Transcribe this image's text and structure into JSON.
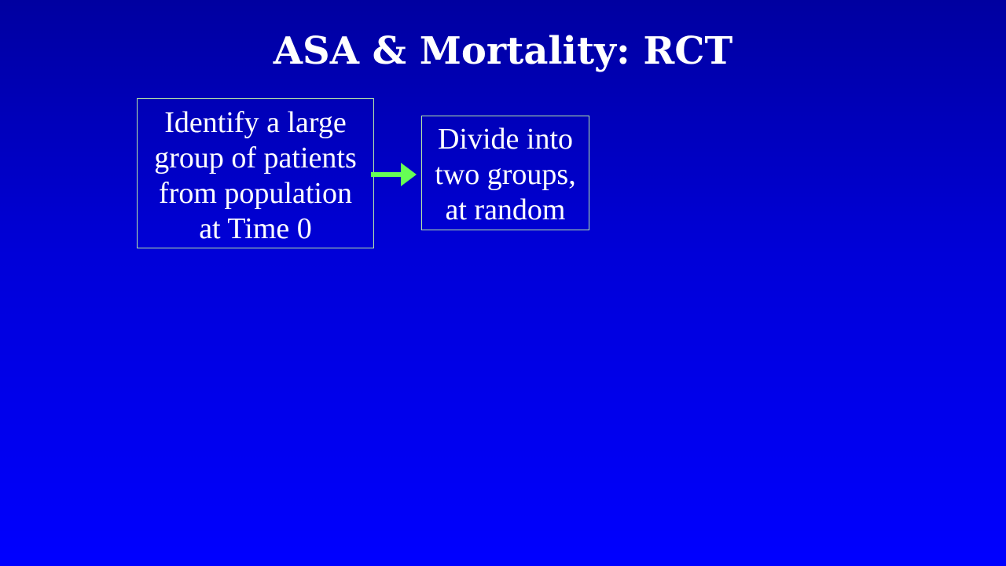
{
  "slide": {
    "title": "ASA & Mortality: RCT"
  },
  "flow": {
    "steps": [
      {
        "lines": [
          "Identify a large",
          "group of patients",
          "from population",
          "at Time 0"
        ]
      },
      {
        "lines": [
          "Divide into",
          "two groups,",
          "at random"
        ]
      }
    ],
    "arrow_color": "#66ff55",
    "box_border_color": "#b8e8a8"
  },
  "colors": {
    "background_top": "#0000a0",
    "background_bottom": "#0000ff",
    "text": "#ffffff"
  }
}
